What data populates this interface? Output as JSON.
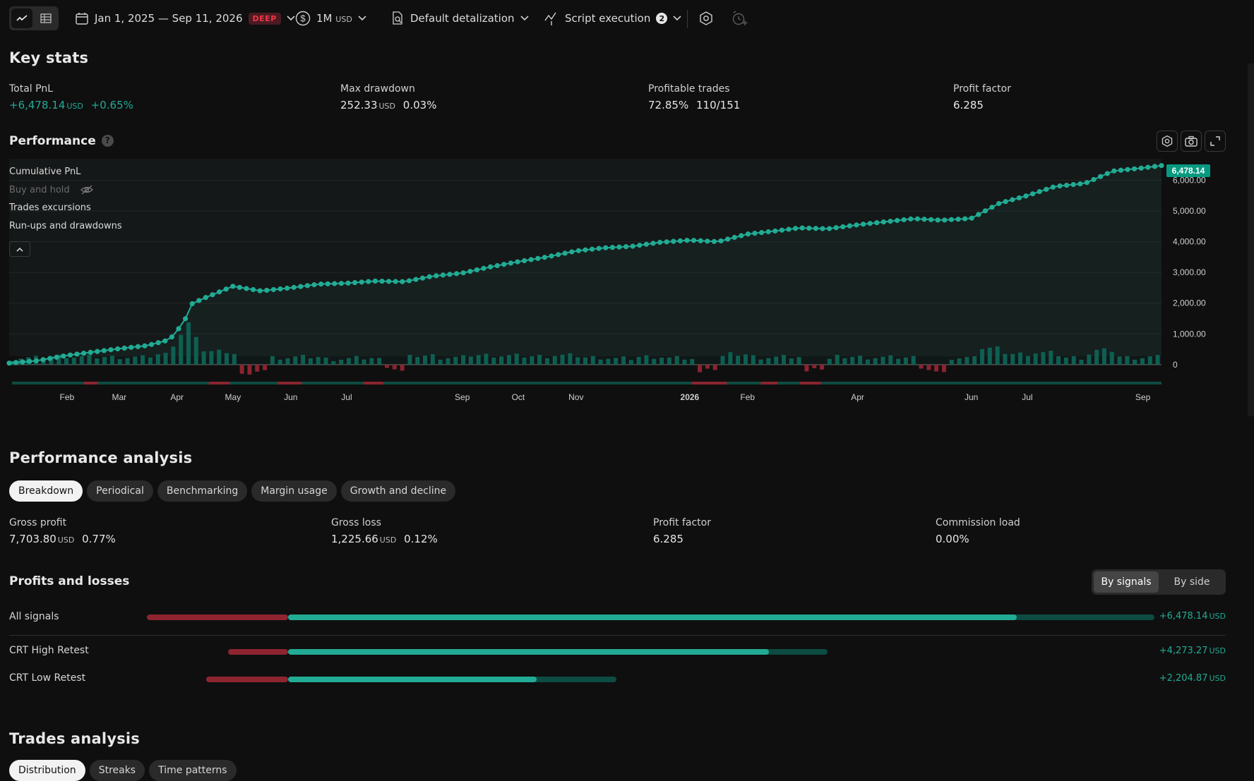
{
  "toolbar": {
    "date_range": "Jan 1, 2025 — Sep 11, 2026",
    "deep_badge": "DEEP",
    "capital": "1M",
    "capital_unit": "USD",
    "detalization": "Default detalization",
    "script_execution": "Script execution",
    "script_execution_count": "2"
  },
  "key_stats": {
    "title": "Key stats",
    "total_pnl": {
      "label": "Total PnL",
      "value": "+6,478.14",
      "unit": "USD",
      "pct": "+0.65%"
    },
    "max_drawdown": {
      "label": "Max drawdown",
      "value": "252.33",
      "unit": "USD",
      "pct": "0.03%"
    },
    "profitable_trades": {
      "label": "Profitable trades",
      "pct": "72.85%",
      "ratio": "110/151"
    },
    "profit_factor": {
      "label": "Profit factor",
      "value": "6.285"
    }
  },
  "performance": {
    "title": "Performance",
    "help": "?",
    "legend": {
      "cumulative_pnl": "Cumulative PnL",
      "buy_and_hold": "Buy and hold",
      "trades_excursions": "Trades excursions",
      "runups_drawdowns": "Run-ups and drawdowns"
    },
    "last_value_label": "6,478.14"
  },
  "chart_data": {
    "type": "line",
    "title": "",
    "xlabel": "",
    "ylabel": "",
    "ylim": [
      -600,
      6700
    ],
    "y_ticks": [
      "0",
      "1,000.00",
      "2,000.00",
      "3,000.00",
      "4,000.00",
      "5,000.00",
      "6,000.00"
    ],
    "x_ticks": [
      "Feb",
      "Mar",
      "Apr",
      "May",
      "Jun",
      "Jul",
      "Sep",
      "Oct",
      "Nov",
      "2026",
      "Feb",
      "Apr",
      "Jun",
      "Jul",
      "Sep"
    ],
    "x_range": [
      "2025-01-01",
      "2026-09-11"
    ],
    "grid": true,
    "colors": {
      "line": "#22ab94",
      "positive": "#0d5b4e",
      "negative": "#8a2430"
    },
    "series": [
      {
        "name": "Cumulative PnL",
        "x": [
          "2025-01-01",
          "2025-01-16",
          "2025-02-01",
          "2025-02-16",
          "2025-03-01",
          "2025-03-16",
          "2025-03-28",
          "2025-04-05",
          "2025-04-08",
          "2025-04-15",
          "2025-05-01",
          "2025-05-16",
          "2025-06-01",
          "2025-06-16",
          "2025-07-01",
          "2025-07-16",
          "2025-08-01",
          "2025-08-16",
          "2025-09-01",
          "2025-09-16",
          "2025-10-01",
          "2025-10-16",
          "2025-11-01",
          "2025-11-16",
          "2025-12-01",
          "2025-12-16",
          "2026-01-01",
          "2026-01-16",
          "2026-02-01",
          "2026-02-16",
          "2026-03-01",
          "2026-03-16",
          "2026-04-01",
          "2026-04-16",
          "2026-05-01",
          "2026-05-16",
          "2026-06-01",
          "2026-06-16",
          "2026-07-01",
          "2026-07-16",
          "2026-08-01",
          "2026-08-16",
          "2026-09-01",
          "2026-09-11"
        ],
        "values": [
          50,
          130,
          300,
          420,
          520,
          620,
          810,
          1400,
          1950,
          2150,
          2550,
          2400,
          2500,
          2620,
          2650,
          2720,
          2700,
          2880,
          2980,
          3180,
          3350,
          3500,
          3700,
          3800,
          3850,
          3980,
          4050,
          4000,
          4250,
          4350,
          4450,
          4420,
          4550,
          4650,
          4750,
          4700,
          4760,
          5250,
          5500,
          5800,
          5900,
          6300,
          6400,
          6478.14
        ]
      }
    ]
  },
  "performance_analysis": {
    "title": "Performance analysis",
    "tabs": [
      "Breakdown",
      "Periodical",
      "Benchmarking",
      "Margin usage",
      "Growth and decline"
    ],
    "gross_profit": {
      "label": "Gross profit",
      "value": "7,703.80",
      "unit": "USD",
      "pct": "0.77%"
    },
    "gross_loss": {
      "label": "Gross loss",
      "value": "1,225.66",
      "unit": "USD",
      "pct": "0.12%"
    },
    "profit_factor": {
      "label": "Profit factor",
      "value": "6.285"
    },
    "commission_load": {
      "label": "Commission load",
      "value": "0.00%"
    }
  },
  "profits_losses": {
    "title": "Profits and losses",
    "toggle": [
      "By signals",
      "By side"
    ],
    "rows": [
      {
        "label": "All signals",
        "value": "+6,478.14",
        "unit": "USD"
      },
      {
        "label": "CRT High Retest",
        "value": "+4,273.27",
        "unit": "USD"
      },
      {
        "label": "CRT Low Retest",
        "value": "+2,204.87",
        "unit": "USD"
      }
    ]
  },
  "trades_analysis": {
    "title": "Trades analysis",
    "tabs": [
      "Distribution",
      "Streaks",
      "Time patterns"
    ]
  }
}
